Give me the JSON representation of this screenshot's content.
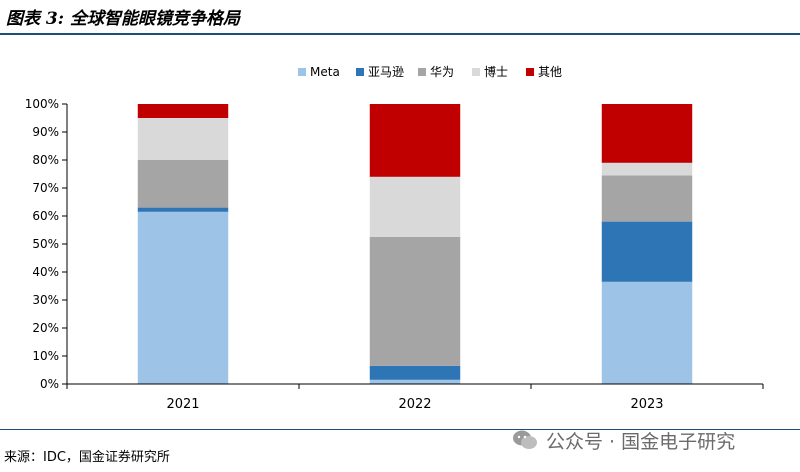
{
  "figure_title": "图表 3: 全球智能眼镜竞争格局",
  "source_note": "来源：IDC，国金证券研究所",
  "watermark": "公众号 · 国金电子研究",
  "chart_data": {
    "type": "bar",
    "stacked": true,
    "categories": [
      "2021",
      "2022",
      "2023"
    ],
    "series": [
      {
        "name": "Meta",
        "color": "#9dc3e6",
        "values": [
          61.5,
          1.5,
          36.5
        ]
      },
      {
        "name": "亚马逊",
        "color": "#2e75b6",
        "values": [
          1.5,
          5.0,
          21.5
        ]
      },
      {
        "name": "华为",
        "color": "#a5a5a5",
        "values": [
          17.0,
          46.0,
          16.5
        ]
      },
      {
        "name": "博士",
        "color": "#d9d9d9",
        "values": [
          15.0,
          21.5,
          4.5
        ]
      },
      {
        "name": "其他",
        "color": "#c00000",
        "values": [
          5.0,
          26.0,
          21.0
        ]
      }
    ],
    "yticks": [
      "0%",
      "10%",
      "20%",
      "30%",
      "40%",
      "50%",
      "60%",
      "70%",
      "80%",
      "90%",
      "100%"
    ],
    "ylim": [
      0,
      100
    ],
    "legend_position": "top-center",
    "grid": false
  }
}
